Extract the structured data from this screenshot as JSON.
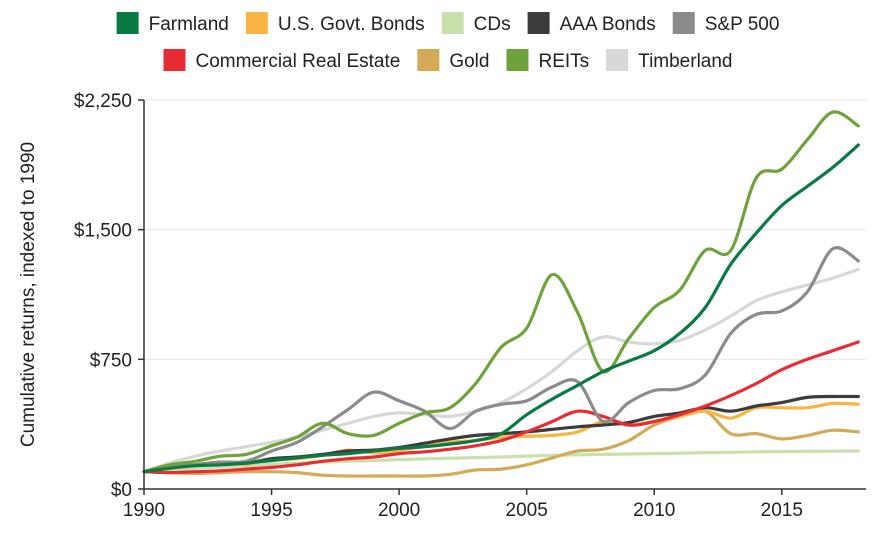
{
  "chart_data": {
    "type": "line",
    "xlabel": "",
    "ylabel": "Cumulative returns, indexed to 1990",
    "xlim": [
      1990,
      2018.3
    ],
    "ylim": [
      0,
      2250
    ],
    "x_ticks": [
      1990,
      1995,
      2000,
      2005,
      2010,
      2015
    ],
    "x_tick_labels": [
      "1990",
      "1995",
      "2000",
      "2005",
      "2010",
      "2015"
    ],
    "y_ticks": [
      0,
      750,
      1500,
      2250
    ],
    "y_tick_labels": [
      "$0",
      "$750",
      "$1,500",
      "$2,250"
    ],
    "grid": true,
    "legend_position": "top",
    "series": [
      {
        "name": "Farmland",
        "color": "#0a7a43",
        "x": [
          1990,
          1991,
          1992,
          1993,
          1994,
          1995,
          1996,
          1997,
          1998,
          1999,
          2000,
          2001,
          2002,
          2003,
          2004,
          2005,
          2006,
          2007,
          2008,
          2009,
          2010,
          2011,
          2012,
          2013,
          2014,
          2015,
          2016,
          2017,
          2018
        ],
        "values": [
          100,
          120,
          135,
          140,
          150,
          165,
          180,
          195,
          205,
          220,
          235,
          245,
          260,
          280,
          320,
          430,
          520,
          600,
          680,
          740,
          800,
          900,
          1050,
          1300,
          1480,
          1640,
          1750,
          1860,
          1990
        ]
      },
      {
        "name": "U.S. Govt. Bonds",
        "color": "#f9b544",
        "x": [
          1990,
          1991,
          1992,
          1993,
          1994,
          1995,
          1996,
          1997,
          1998,
          1999,
          2000,
          2001,
          2002,
          2003,
          2004,
          2005,
          2006,
          2007,
          2008,
          2009,
          2010,
          2011,
          2012,
          2013,
          2014,
          2015,
          2016,
          2017,
          2018
        ],
        "values": [
          100,
          120,
          135,
          150,
          145,
          170,
          175,
          195,
          225,
          210,
          225,
          245,
          270,
          280,
          300,
          305,
          310,
          330,
          390,
          370,
          390,
          420,
          450,
          410,
          470,
          470,
          470,
          495,
          490
        ]
      },
      {
        "name": "CDs",
        "color": "#c7e0ac",
        "x": [
          1990,
          1992,
          1994,
          1996,
          1998,
          2000,
          2002,
          2004,
          2006,
          2008,
          2010,
          2012,
          2014,
          2016,
          2018
        ],
        "values": [
          100,
          120,
          135,
          150,
          160,
          170,
          178,
          185,
          195,
          200,
          205,
          210,
          215,
          218,
          220
        ]
      },
      {
        "name": "AAA Bonds",
        "color": "#3c3c3c",
        "x": [
          1990,
          1991,
          1992,
          1993,
          1994,
          1995,
          1996,
          1997,
          1998,
          1999,
          2000,
          2001,
          2002,
          2003,
          2004,
          2005,
          2006,
          2007,
          2008,
          2009,
          2010,
          2011,
          2012,
          2013,
          2014,
          2015,
          2016,
          2017,
          2018
        ],
        "values": [
          100,
          125,
          140,
          155,
          150,
          175,
          185,
          200,
          220,
          225,
          240,
          265,
          290,
          310,
          320,
          330,
          345,
          360,
          370,
          385,
          420,
          440,
          470,
          450,
          480,
          500,
          530,
          535,
          535
        ]
      },
      {
        "name": "S&P 500",
        "color": "#8b8b8e",
        "x": [
          1990,
          1991,
          1992,
          1993,
          1994,
          1995,
          1996,
          1997,
          1998,
          1999,
          2000,
          2001,
          2002,
          2003,
          2004,
          2005,
          2006,
          2007,
          2008,
          2009,
          2010,
          2011,
          2012,
          2013,
          2014,
          2015,
          2016,
          2017,
          2018
        ],
        "values": [
          100,
          130,
          140,
          155,
          160,
          220,
          270,
          360,
          460,
          560,
          510,
          450,
          350,
          450,
          490,
          510,
          590,
          620,
          390,
          500,
          570,
          580,
          660,
          900,
          1010,
          1030,
          1140,
          1390,
          1320
        ]
      },
      {
        "name": "Commercial Real Estate",
        "color": "#e82c34",
        "x": [
          1990,
          1991,
          1992,
          1993,
          1994,
          1995,
          1996,
          1997,
          1998,
          1999,
          2000,
          2001,
          2002,
          2003,
          2004,
          2005,
          2006,
          2007,
          2008,
          2009,
          2010,
          2011,
          2012,
          2013,
          2014,
          2015,
          2016,
          2017,
          2018
        ],
        "values": [
          100,
          95,
          100,
          105,
          115,
          125,
          140,
          160,
          175,
          185,
          205,
          215,
          230,
          250,
          280,
          330,
          390,
          450,
          420,
          370,
          390,
          430,
          480,
          540,
          610,
          690,
          750,
          800,
          850
        ]
      },
      {
        "name": "Gold",
        "color": "#d3ab58",
        "x": [
          1990,
          1991,
          1992,
          1993,
          1994,
          1995,
          1996,
          1997,
          1998,
          1999,
          2000,
          2001,
          2002,
          2003,
          2004,
          2005,
          2006,
          2007,
          2008,
          2009,
          2010,
          2011,
          2012,
          2013,
          2014,
          2015,
          2016,
          2017,
          2018
        ],
        "values": [
          100,
          95,
          90,
          95,
          100,
          100,
          95,
          80,
          75,
          75,
          75,
          75,
          85,
          110,
          115,
          140,
          180,
          220,
          230,
          280,
          370,
          420,
          450,
          320,
          320,
          290,
          310,
          340,
          330
        ]
      },
      {
        "name": "REITs",
        "color": "#6ea33c",
        "x": [
          1990,
          1991,
          1992,
          1993,
          1994,
          1995,
          1996,
          1997,
          1998,
          1999,
          2000,
          2001,
          2002,
          2003,
          2004,
          2005,
          2006,
          2007,
          2008,
          2009,
          2010,
          2011,
          2012,
          2013,
          2014,
          2015,
          2016,
          2017,
          2018
        ],
        "values": [
          100,
          140,
          160,
          190,
          200,
          250,
          300,
          380,
          320,
          310,
          380,
          440,
          470,
          610,
          820,
          930,
          1240,
          1020,
          680,
          870,
          1050,
          1150,
          1380,
          1380,
          1800,
          1850,
          2020,
          2180,
          2100
        ]
      },
      {
        "name": "Timberland",
        "color": "#d7d8d9",
        "x": [
          1990,
          1991,
          1992,
          1993,
          1994,
          1995,
          1996,
          1997,
          1998,
          1999,
          2000,
          2001,
          2002,
          2003,
          2004,
          2005,
          2006,
          2007,
          2008,
          2009,
          2010,
          2011,
          2012,
          2013,
          2014,
          2015,
          2016,
          2017,
          2018
        ],
        "values": [
          100,
          150,
          190,
          220,
          245,
          270,
          300,
          340,
          380,
          420,
          440,
          430,
          420,
          450,
          500,
          580,
          680,
          800,
          880,
          850,
          840,
          860,
          920,
          1000,
          1090,
          1140,
          1180,
          1220,
          1270
        ]
      }
    ],
    "legend_rows": [
      [
        "Farmland",
        "U.S. Govt. Bonds",
        "CDs",
        "AAA Bonds",
        "S&P 500"
      ],
      [
        "Commercial Real Estate",
        "Gold",
        "REITs",
        "Timberland"
      ]
    ]
  }
}
